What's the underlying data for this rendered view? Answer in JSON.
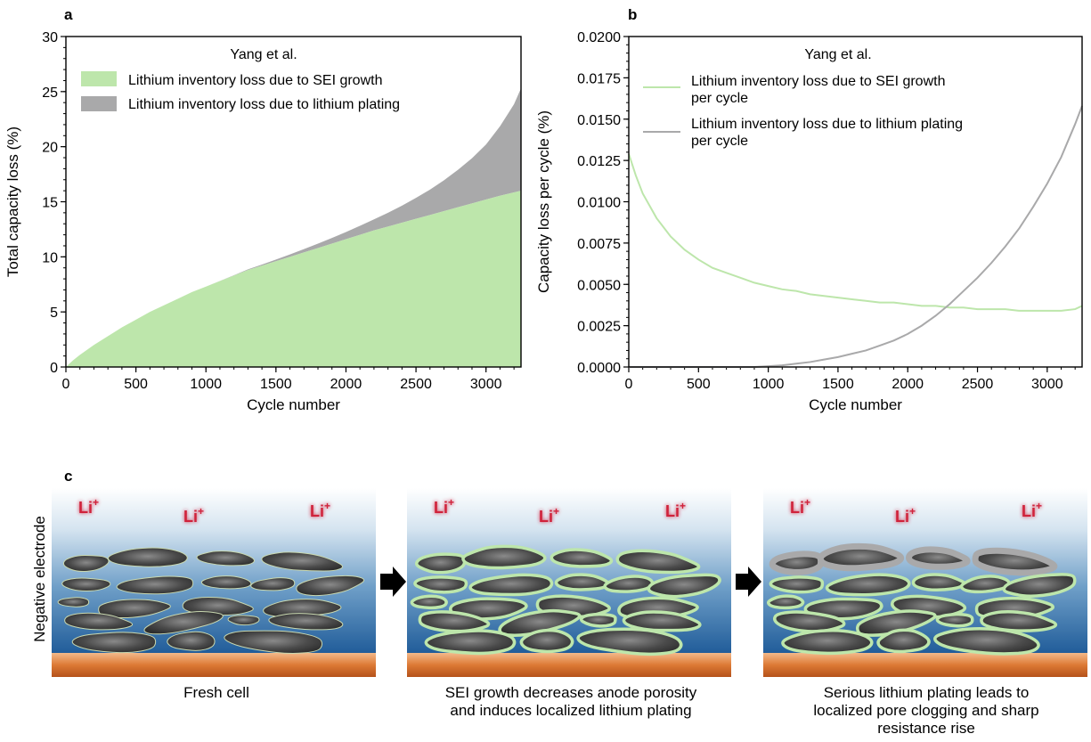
{
  "panel_labels": {
    "a": "a",
    "b": "b",
    "c": "c"
  },
  "colors": {
    "sei": "#bde6ab",
    "plating_area": "#a9a9aa",
    "sei_line": "#bde6ab",
    "plating_line": "#a9a9aa",
    "li_ion": "#d0203a",
    "particle": "#505050",
    "current_collector": "#d2691e"
  },
  "chart_data": [
    {
      "type": "area",
      "panel": "a",
      "xlabel": "Cycle number",
      "ylabel": "Total capacity loss (%)",
      "xlim": [
        0,
        3250
      ],
      "ylim": [
        0,
        30
      ],
      "xticks": [
        0,
        500,
        1000,
        1500,
        2000,
        2500,
        3000
      ],
      "yticks": [
        0,
        5,
        10,
        15,
        20,
        25,
        30
      ],
      "legend_title": "Yang et al.",
      "legend_position": "upper-left",
      "x": [
        0,
        50,
        100,
        200,
        300,
        400,
        500,
        600,
        700,
        800,
        900,
        1000,
        1100,
        1200,
        1300,
        1400,
        1500,
        1600,
        1700,
        1800,
        1900,
        2000,
        2100,
        2200,
        2300,
        2400,
        2500,
        2600,
        2700,
        2800,
        2900,
        3000,
        3100,
        3200,
        3250
      ],
      "series": [
        {
          "name": "Lithium inventory loss due to SEI growth",
          "values": [
            0,
            0.6,
            1.1,
            2.0,
            2.8,
            3.6,
            4.3,
            5.0,
            5.6,
            6.2,
            6.8,
            7.3,
            7.8,
            8.3,
            8.8,
            9.2,
            9.6,
            10.0,
            10.4,
            10.8,
            11.2,
            11.6,
            12.0,
            12.4,
            12.75,
            13.1,
            13.45,
            13.8,
            14.15,
            14.5,
            14.85,
            15.2,
            15.55,
            15.85,
            16.0
          ]
        },
        {
          "name": "Lithium inventory loss due to lithium plating",
          "values": [
            0,
            0,
            0,
            0,
            0,
            0,
            0,
            0,
            0,
            0,
            0,
            0,
            0.01,
            0.03,
            0.06,
            0.1,
            0.15,
            0.22,
            0.3,
            0.4,
            0.52,
            0.65,
            0.82,
            1.0,
            1.25,
            1.55,
            1.9,
            2.3,
            2.8,
            3.4,
            4.1,
            5.0,
            6.3,
            8.0,
            9.3
          ]
        }
      ]
    },
    {
      "type": "line",
      "panel": "b",
      "xlabel": "Cycle number",
      "ylabel": "Capacity loss per cycle (%)",
      "xlim": [
        0,
        3250
      ],
      "ylim": [
        0,
        0.02
      ],
      "xticks": [
        0,
        500,
        1000,
        1500,
        2000,
        2500,
        3000
      ],
      "yticks": [
        "0.0000",
        "0.0025",
        "0.0050",
        "0.0075",
        "0.0100",
        "0.0125",
        "0.0150",
        "0.0175",
        "0.0200"
      ],
      "legend_title": "Yang et al.",
      "legend_position": "upper-left",
      "x": [
        0,
        50,
        100,
        200,
        300,
        400,
        500,
        600,
        700,
        800,
        900,
        1000,
        1100,
        1200,
        1300,
        1400,
        1500,
        1600,
        1700,
        1800,
        1900,
        2000,
        2100,
        2200,
        2300,
        2400,
        2500,
        2600,
        2700,
        2800,
        2900,
        3000,
        3100,
        3200,
        3250
      ],
      "series": [
        {
          "name": "Lithium inventory loss due to SEI growth\nper cycle",
          "values": [
            0.0129,
            0.0116,
            0.0105,
            0.009,
            0.0079,
            0.0071,
            0.0065,
            0.006,
            0.0057,
            0.0054,
            0.0051,
            0.0049,
            0.0047,
            0.0046,
            0.0044,
            0.0043,
            0.0042,
            0.0041,
            0.004,
            0.0039,
            0.0039,
            0.0038,
            0.0037,
            0.0037,
            0.0036,
            0.0036,
            0.0035,
            0.0035,
            0.0035,
            0.0034,
            0.0034,
            0.0034,
            0.0034,
            0.0035,
            0.0037
          ]
        },
        {
          "name": "Lithium inventory loss due to lithium plating\nper cycle",
          "values": [
            0,
            0,
            0,
            0,
            0,
            0,
            0,
            0,
            0,
            0,
            0,
            5e-05,
            0.0001,
            0.0002,
            0.0003,
            0.00045,
            0.0006,
            0.0008,
            0.001,
            0.0013,
            0.0016,
            0.002,
            0.0025,
            0.0031,
            0.0038,
            0.0046,
            0.0054,
            0.0063,
            0.0073,
            0.0084,
            0.0097,
            0.0111,
            0.0127,
            0.0147,
            0.0158
          ]
        }
      ]
    }
  ],
  "panel_c": {
    "ylabel": "Negative electrode",
    "ion_label": "Li",
    "ion_charge": "+",
    "captions": [
      [
        "Fresh cell"
      ],
      [
        "SEI growth decreases anode porosity",
        "and induces localized lithium plating"
      ],
      [
        "Serious lithium plating leads to",
        "localized pore clogging and sharp",
        "resistance rise"
      ]
    ]
  }
}
